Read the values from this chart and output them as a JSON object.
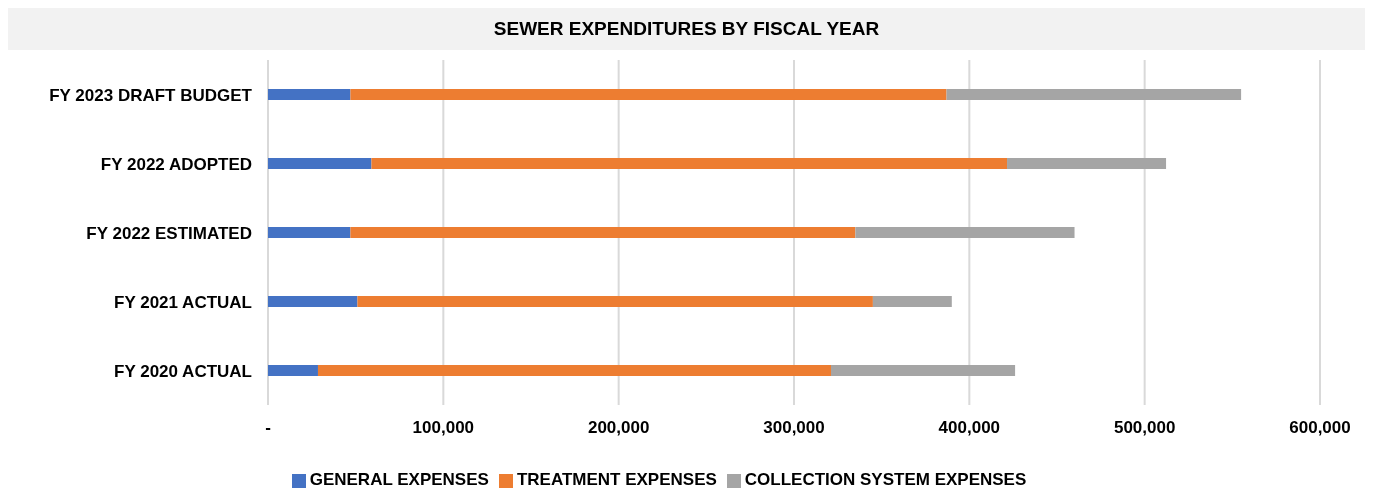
{
  "chart_data": {
    "type": "bar",
    "orientation": "horizontal",
    "stacked": true,
    "title": "SEWER EXPENDITURES BY FISCAL YEAR",
    "categories": [
      "FY 2023 DRAFT BUDGET",
      "FY 2022 ADOPTED",
      "FY 2022 ESTIMATED",
      "FY 2021 ACTUAL",
      "FY 2020 ACTUAL"
    ],
    "series": [
      {
        "name": "GENERAL EXPENSES",
        "color": "#4472c4",
        "values": [
          47000,
          59000,
          47000,
          51000,
          28500
        ]
      },
      {
        "name": "TREATMENT EXPENSES",
        "color": "#ed7d31",
        "values": [
          340000,
          362500,
          288000,
          294000,
          292600
        ]
      },
      {
        "name": "COLLECTION SYSTEM EXPENSES",
        "color": "#a5a5a5",
        "values": [
          168000,
          90700,
          125000,
          45000,
          105000
        ]
      }
    ],
    "xlim": [
      0,
      600000
    ],
    "xticks": [
      {
        "value": 0,
        "label": "-"
      },
      {
        "value": 100000,
        "label": "100,000"
      },
      {
        "value": 200000,
        "label": "200,000"
      },
      {
        "value": 300000,
        "label": "300,000"
      },
      {
        "value": 400000,
        "label": "400,000"
      },
      {
        "value": 500000,
        "label": "500,000"
      },
      {
        "value": 600000,
        "label": "600,000"
      }
    ],
    "grid": "x",
    "legend": "bottom"
  }
}
